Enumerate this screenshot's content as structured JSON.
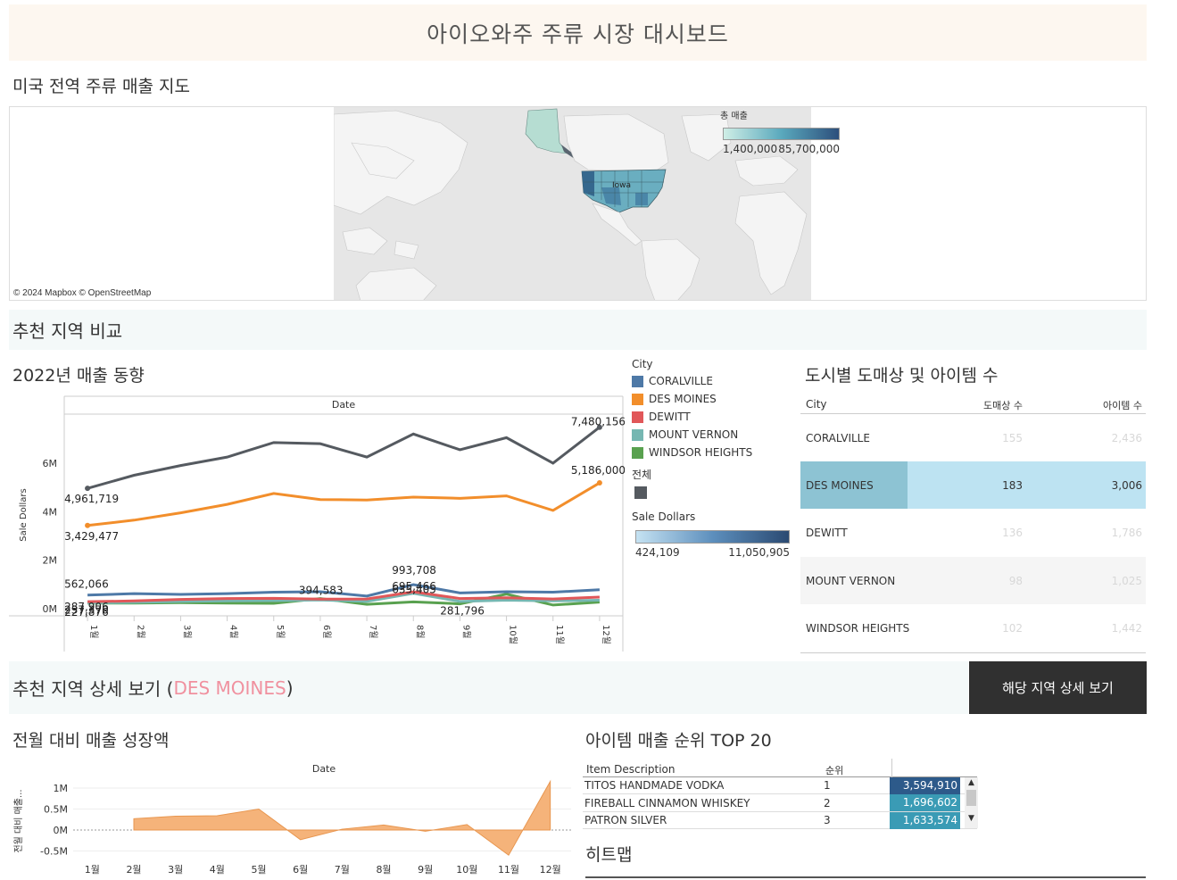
{
  "dashboard_title": "아이오와주 주류 시장 대시보드",
  "map": {
    "heading": "미국 전역 주류 매출 지도",
    "legend_title": "총 매출",
    "legend_min": "1,400,000",
    "legend_max": "85,700,000",
    "state_label": "Iowa",
    "copyright": "© 2024 Mapbox © OpenStreetMap"
  },
  "region_section": "추천 지역 비교",
  "trend": {
    "heading": "2022년 매출 동향",
    "column_header": "Date",
    "ylabel": "Sale Dollars"
  },
  "legend": {
    "city_title": "City",
    "cities": [
      {
        "name": "CORALVILLE",
        "color": "#4e79a7"
      },
      {
        "name": "DES MOINES",
        "color": "#f28e2b"
      },
      {
        "name": "DEWITT",
        "color": "#e15759"
      },
      {
        "name": "MOUNT VERNON",
        "color": "#76b7b2"
      },
      {
        "name": "WINDSOR HEIGHTS",
        "color": "#59a14f"
      }
    ],
    "total_title": "전체",
    "total_color": "#555a60",
    "sales_title": "Sale Dollars",
    "sales_min": "424,109",
    "sales_max": "11,050,905"
  },
  "city_table": {
    "heading": "도시별 도매상 및 아이템 수",
    "headers": {
      "city": "City",
      "wholesalers": "도매상 수",
      "items": "아이템 수"
    },
    "rows": [
      {
        "city": "CORALVILLE",
        "wholesalers": "155",
        "items": "2,436"
      },
      {
        "city": "DES MOINES",
        "wholesalers": "183",
        "items": "3,006"
      },
      {
        "city": "DEWITT",
        "wholesalers": "136",
        "items": "1,786"
      },
      {
        "city": "MOUNT VERNON",
        "wholesalers": "98",
        "items": "1,025"
      },
      {
        "city": "WINDSOR HEIGHTS",
        "wholesalers": "102",
        "items": "1,442"
      }
    ]
  },
  "detail": {
    "prefix": "추천 지역 상세 보기 (",
    "city": "DES MOINES",
    "suffix": ")",
    "button": "해당 지역 상세 보기"
  },
  "growth": {
    "heading": "전월 대비 매출 성장액",
    "column_header": "Date",
    "ylabel": "전월 대비 매출..."
  },
  "top20": {
    "heading": "아이템 매출 순위 TOP 20",
    "headers": {
      "item": "Item Description",
      "rank": "순위"
    },
    "rows": [
      {
        "item": "TITOS HANDMADE VODKA",
        "rank": "1",
        "value": "3,594,910",
        "color": "#2d5a8a"
      },
      {
        "item": "FIREBALL CINNAMON WHISKEY",
        "rank": "2",
        "value": "1,696,602",
        "color": "#3a9bb5"
      },
      {
        "item": "PATRON SILVER",
        "rank": "3",
        "value": "1,633,574",
        "color": "#3a9bb5"
      }
    ]
  },
  "heatmap_heading": "히트맵",
  "chart_data": [
    {
      "type": "line",
      "title": "2022년 매출 동향",
      "xlabel": "Date",
      "ylabel": "Sale Dollars",
      "categories": [
        "1월",
        "2월",
        "3월",
        "4월",
        "5월",
        "6월",
        "7월",
        "8월",
        "9월",
        "10월",
        "11월",
        "12월"
      ],
      "y_ticks": [
        "0M",
        "2M",
        "4M",
        "6M"
      ],
      "ylim": [
        0,
        7800000
      ],
      "series": [
        {
          "name": "전체",
          "values": [
            4961719,
            5500000,
            5900000,
            6250000,
            6850000,
            6800000,
            6250000,
            7200000,
            6550000,
            7050000,
            6000000,
            7480156
          ]
        },
        {
          "name": "DES MOINES",
          "values": [
            3429477,
            3650000,
            3950000,
            4300000,
            4750000,
            4500000,
            4480000,
            4600000,
            4550000,
            4650000,
            4050000,
            5186000
          ]
        },
        {
          "name": "CORALVILLE",
          "values": [
            562066,
            620000,
            590000,
            620000,
            680000,
            700000,
            520000,
            993708,
            650000,
            700000,
            680000,
            780000
          ]
        },
        {
          "name": "DEWITT",
          "values": [
            287906,
            320000,
            380000,
            420000,
            430000,
            394583,
            400000,
            695466,
            420000,
            450000,
            400000,
            480000
          ]
        },
        {
          "name": "MOUNT VERNON",
          "values": [
            237370,
            260000,
            300000,
            320000,
            330000,
            360000,
            300000,
            635405,
            300000,
            350000,
            320000,
            350000
          ]
        },
        {
          "name": "WINDSOR HEIGHTS",
          "values": [
            227876,
            230000,
            250000,
            230000,
            220000,
            420000,
            180000,
            281796,
            200000,
            600000,
            150000,
            270000
          ]
        }
      ],
      "data_labels": [
        {
          "series": "전체",
          "index": 0,
          "text": "4,961,719"
        },
        {
          "series": "전체",
          "index": 11,
          "text": "7,480,156"
        },
        {
          "series": "DES MOINES",
          "index": 0,
          "text": "3,429,477"
        },
        {
          "series": "DES MOINES",
          "index": 11,
          "text": "5,186,000"
        },
        {
          "series": "CORALVILLE",
          "index": 0,
          "text": "562,066"
        },
        {
          "series": "CORALVILLE",
          "index": 7,
          "text": "993,708"
        },
        {
          "series": "DEWITT",
          "index": 0,
          "text": "287,906"
        },
        {
          "series": "DEWITT",
          "index": 5,
          "text": "394,583"
        },
        {
          "series": "DEWITT",
          "index": 7,
          "text": "695,466"
        },
        {
          "series": "MOUNT VERNON",
          "index": 0,
          "text": "237,370"
        },
        {
          "series": "MOUNT VERNON",
          "index": 7,
          "text": "635,405"
        },
        {
          "series": "WINDSOR HEIGHTS",
          "index": 0,
          "text": "227,876"
        },
        {
          "series": "WINDSOR HEIGHTS",
          "index": 7,
          "text": "281,796"
        }
      ]
    },
    {
      "type": "area",
      "title": "전월 대비 매출 성장액",
      "xlabel": "Date",
      "ylabel": "전월 대비 매출...",
      "categories": [
        "1월",
        "2월",
        "3월",
        "4월",
        "5월",
        "6월",
        "7월",
        "8월",
        "9월",
        "10월",
        "11월",
        "12월"
      ],
      "y_ticks": [
        "1M",
        "0.5M",
        "0M",
        "-0.5M"
      ],
      "ylim": [
        -0.75,
        1.2
      ],
      "values": [
        null,
        0.27,
        0.33,
        0.34,
        0.5,
        -0.23,
        0.02,
        0.12,
        -0.03,
        0.13,
        -0.6,
        1.16
      ]
    }
  ]
}
